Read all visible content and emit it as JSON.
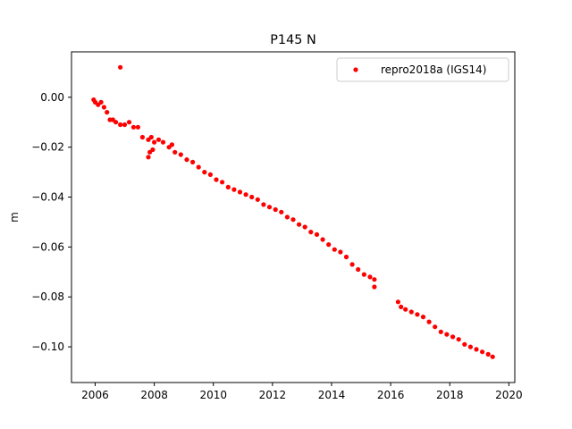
{
  "chart_data": {
    "type": "scatter",
    "title": "P145 N",
    "xlabel": "",
    "ylabel": "m",
    "xlim": [
      2005.2,
      2020.2
    ],
    "ylim": [
      -0.1143,
      0.0182
    ],
    "xticks": [
      2006,
      2008,
      2010,
      2012,
      2014,
      2016,
      2018,
      2020
    ],
    "xtick_labels": [
      "2006",
      "2008",
      "2010",
      "2012",
      "2014",
      "2016",
      "2018",
      "2020"
    ],
    "yticks": [
      0.0,
      -0.02,
      -0.04,
      -0.06,
      -0.08,
      -0.1
    ],
    "ytick_labels": [
      "0.00",
      "−0.02",
      "−0.04",
      "−0.06",
      "−0.08",
      "−0.10"
    ],
    "grid": false,
    "legend_position": "upper-right",
    "series": [
      {
        "name": "repro2018a (IGS14)",
        "color": "#ff0000",
        "marker": "dot",
        "x": [
          2005.95,
          2006.0,
          2006.1,
          2006.2,
          2006.3,
          2006.4,
          2006.5,
          2006.6,
          2006.7,
          2006.85,
          2007.0,
          2007.15,
          2007.3,
          2007.45,
          2007.6,
          2007.8,
          2007.9,
          2008.0,
          2008.15,
          2008.3,
          2008.5,
          2008.7,
          2008.9,
          2009.1,
          2009.3,
          2009.5,
          2009.7,
          2009.9,
          2010.1,
          2010.3,
          2010.5,
          2010.7,
          2010.9,
          2011.1,
          2011.3,
          2011.5,
          2011.7,
          2011.9,
          2012.1,
          2012.3,
          2012.5,
          2012.7,
          2012.9,
          2013.1,
          2013.3,
          2013.5,
          2013.7,
          2013.9,
          2014.1,
          2014.3,
          2014.5,
          2014.7,
          2014.9,
          2015.1,
          2015.3,
          2015.45,
          2016.25,
          2016.35,
          2016.5,
          2016.7,
          2016.9,
          2017.1,
          2017.3,
          2017.5,
          2017.7,
          2017.9,
          2018.1,
          2018.3,
          2018.5,
          2018.7,
          2018.9,
          2019.1,
          2019.3,
          2019.45,
          2006.85,
          2007.8,
          2007.85,
          2007.95,
          2008.6,
          2015.45
        ],
        "y": [
          -0.001,
          -0.002,
          -0.003,
          -0.002,
          -0.004,
          -0.006,
          -0.009,
          -0.009,
          -0.01,
          -0.011,
          -0.011,
          -0.01,
          -0.012,
          -0.012,
          -0.016,
          -0.017,
          -0.016,
          -0.018,
          -0.017,
          -0.018,
          -0.02,
          -0.022,
          -0.023,
          -0.025,
          -0.026,
          -0.028,
          -0.03,
          -0.031,
          -0.033,
          -0.034,
          -0.036,
          -0.037,
          -0.038,
          -0.039,
          -0.04,
          -0.041,
          -0.043,
          -0.044,
          -0.045,
          -0.046,
          -0.048,
          -0.049,
          -0.051,
          -0.052,
          -0.054,
          -0.055,
          -0.057,
          -0.059,
          -0.061,
          -0.062,
          -0.064,
          -0.067,
          -0.069,
          -0.071,
          -0.072,
          -0.073,
          -0.082,
          -0.084,
          -0.085,
          -0.086,
          -0.087,
          -0.088,
          -0.09,
          -0.092,
          -0.094,
          -0.095,
          -0.096,
          -0.097,
          -0.099,
          -0.1,
          -0.101,
          -0.102,
          -0.103,
          -0.104,
          0.012,
          -0.024,
          -0.022,
          -0.021,
          -0.019,
          -0.076
        ]
      }
    ]
  }
}
